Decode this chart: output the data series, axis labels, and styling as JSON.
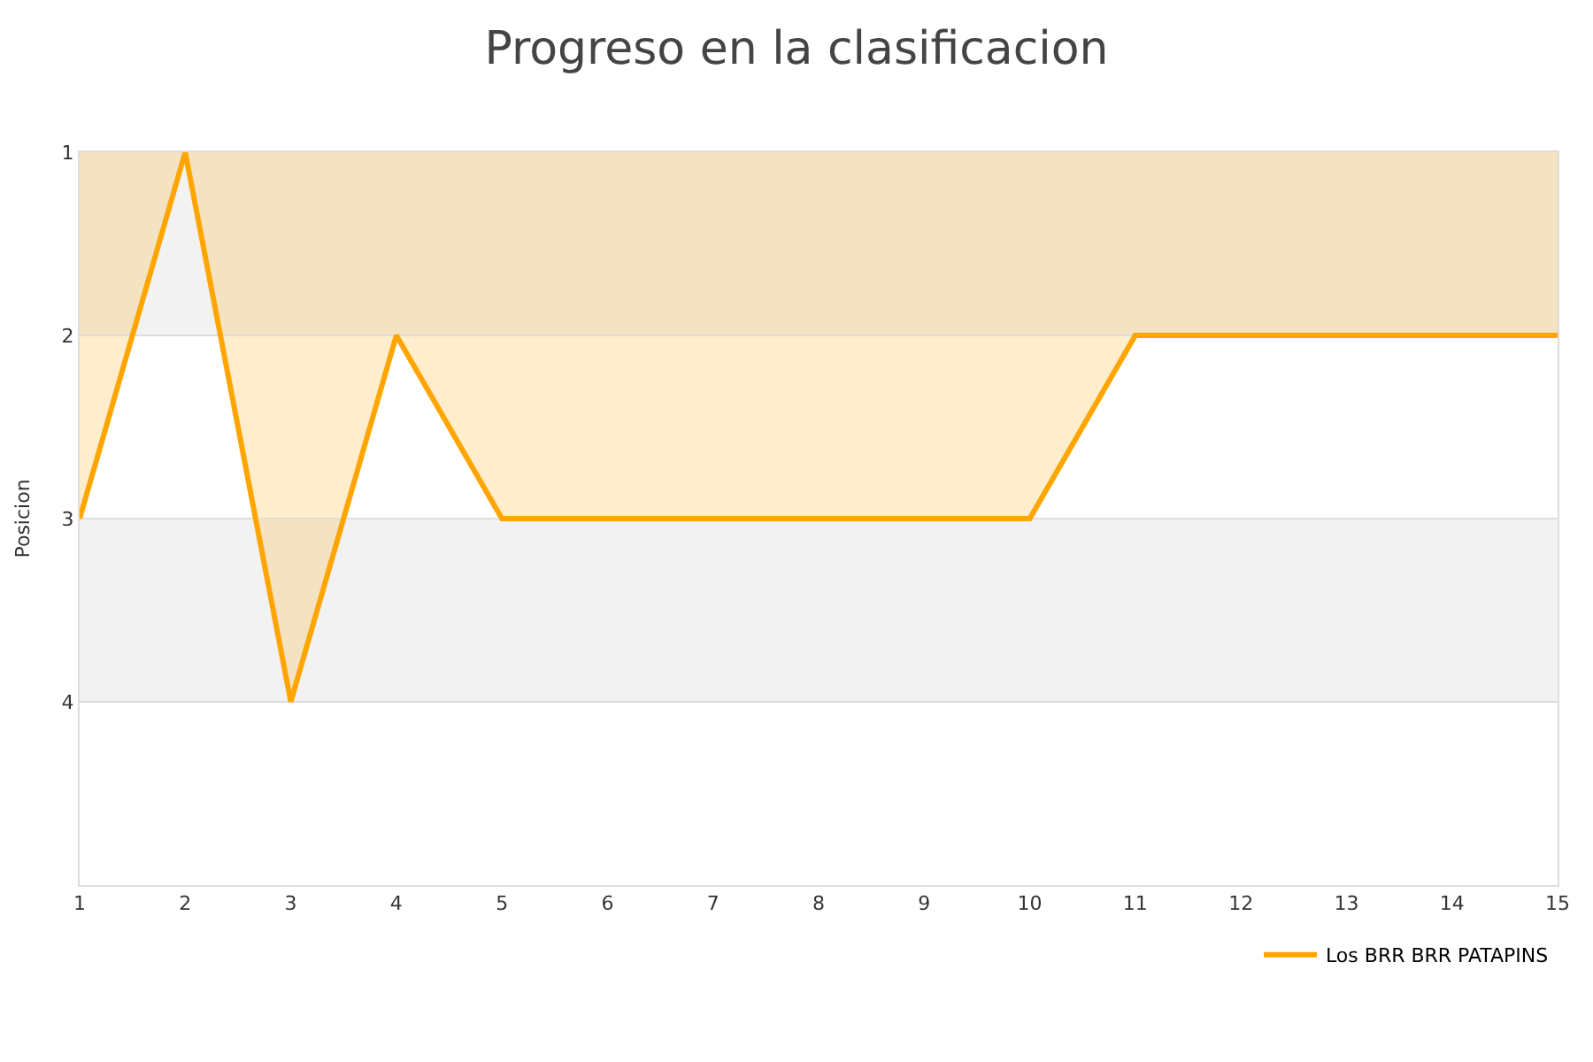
{
  "chart_data": {
    "type": "area",
    "title": "Progreso en la clasificacion",
    "ylabel": "Posicion",
    "x": [
      1,
      2,
      3,
      4,
      5,
      6,
      7,
      8,
      9,
      10,
      11,
      12,
      13,
      14,
      15
    ],
    "series": [
      {
        "name": "Los BRR BRR PATAPINS",
        "color": "#ffa500",
        "values": [
          3,
          1,
          4,
          2,
          3,
          3,
          3,
          3,
          3,
          3,
          2,
          2,
          2,
          2,
          2
        ]
      }
    ],
    "xlim": [
      1,
      15
    ],
    "xticks": [
      1,
      2,
      3,
      4,
      5,
      6,
      7,
      8,
      9,
      10,
      11,
      12,
      13,
      14,
      15
    ],
    "ylim": [
      5,
      1
    ],
    "yticks": [
      1,
      2,
      3,
      4
    ],
    "bands": [
      {
        "axis": "y",
        "from": 1,
        "to": 2,
        "color": "#f2f2f2"
      },
      {
        "axis": "y",
        "from": 3,
        "to": 4,
        "color": "#f2f2f2"
      }
    ],
    "grid": "y",
    "legend": "bottom right",
    "marker": "none",
    "line_style": "solid"
  }
}
